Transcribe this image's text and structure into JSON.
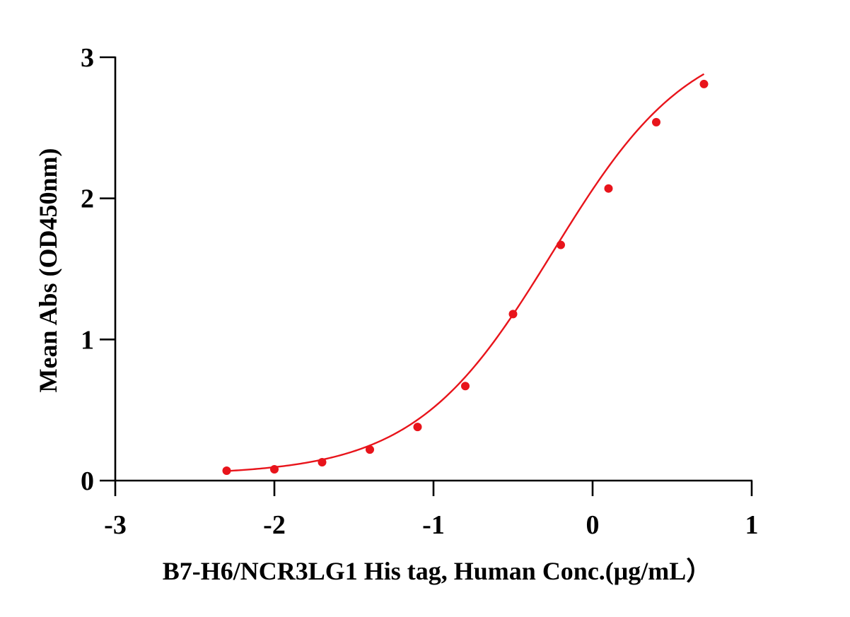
{
  "chart_data": {
    "type": "scatter",
    "title": "",
    "xlabel": "B7-H6/NCR3LG1 His tag, Human  Conc.(μg/mL）",
    "ylabel": "Mean Abs (OD450nm)",
    "xlim": [
      -3,
      1
    ],
    "ylim": [
      0,
      3
    ],
    "x_ticks": [
      "-3",
      "-2",
      "-1",
      "0",
      "1"
    ],
    "y_ticks": [
      "0",
      "1",
      "2",
      "3"
    ],
    "grid": false,
    "legend": "none",
    "color": "#e8141b",
    "series": [
      {
        "x": [
          -2.3,
          -2.0,
          -1.7,
          -1.4,
          -1.1,
          -0.8,
          -0.5,
          -0.2,
          0.1,
          0.4,
          0.7
        ],
        "y": [
          0.07,
          0.08,
          0.13,
          0.22,
          0.38,
          0.67,
          1.18,
          1.67,
          2.07,
          2.54,
          2.81
        ]
      }
    ],
    "fit_curve": {
      "model": "four-parameter logistic",
      "bottom": 0.04,
      "top": 3.2,
      "log_ec50": -0.25,
      "hill_slope": 1.0
    }
  }
}
